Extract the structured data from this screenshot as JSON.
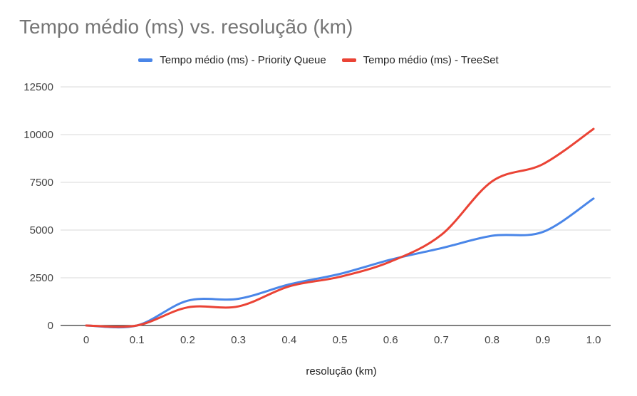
{
  "chart_data": {
    "type": "line",
    "title": "Tempo médio (ms) vs. resolução (km)",
    "xlabel": "resolução (km)",
    "ylabel": "",
    "categories": [
      "0",
      "0.1",
      "0.2",
      "0.3",
      "0.4",
      "0.5",
      "0.6",
      "0.7",
      "0.8",
      "0.9",
      "1.0"
    ],
    "y_ticks": [
      "0",
      "2500",
      "5000",
      "7500",
      "10000",
      "12500"
    ],
    "ylim": [
      0,
      12500
    ],
    "grid": true,
    "legend_position": "top",
    "series": [
      {
        "name": "Tempo médio (ms) - Priority Queue",
        "color": "#4a86e8",
        "values": [
          0,
          0,
          1300,
          1400,
          2150,
          2700,
          3450,
          4050,
          4700,
          4900,
          6650
        ]
      },
      {
        "name": "Tempo médio (ms) - TreeSet",
        "color": "#ea4335",
        "values": [
          0,
          0,
          950,
          1000,
          2050,
          2550,
          3350,
          4750,
          7550,
          8450,
          10300
        ]
      }
    ]
  }
}
